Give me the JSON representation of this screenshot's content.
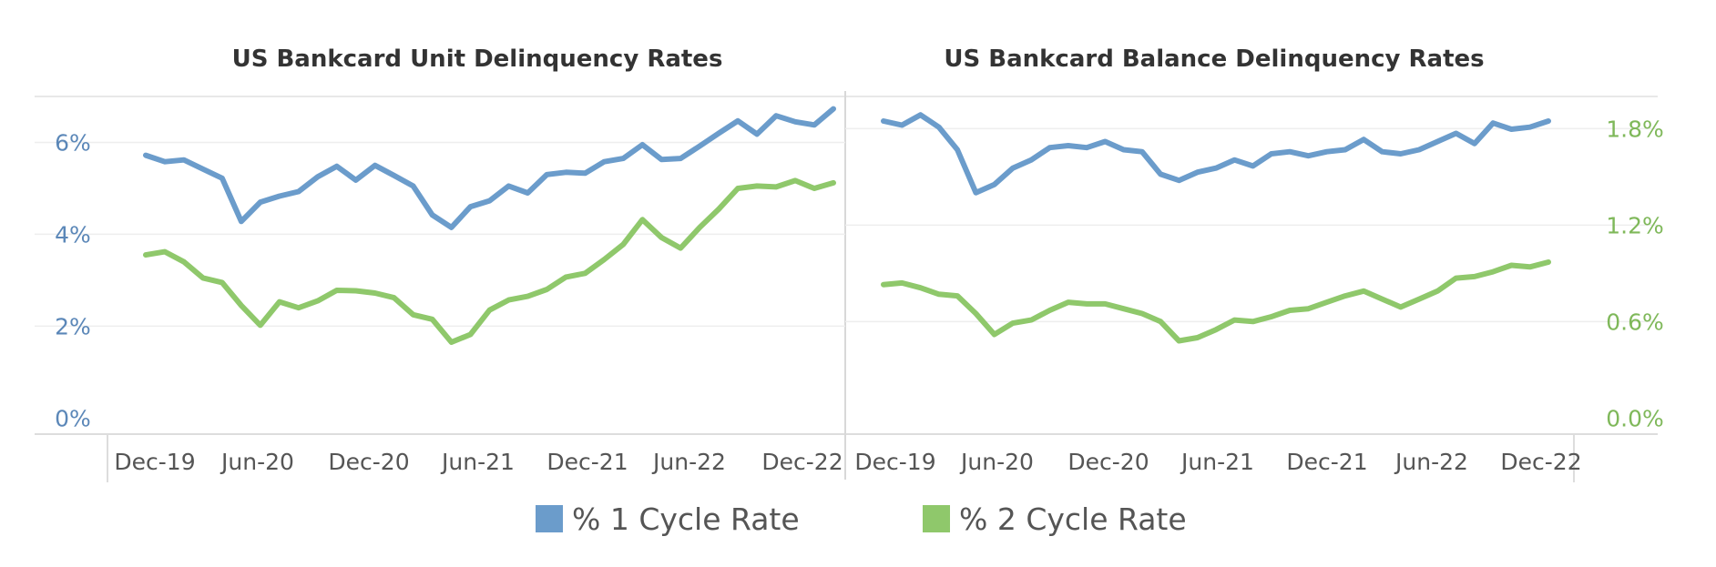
{
  "chart_data": [
    {
      "type": "line",
      "title": "US Bankcard Unit Delinquency Rates",
      "x_tick_labels": [
        "Dec-19",
        "Jun-20",
        "Dec-20",
        "Jun-21",
        "Dec-21",
        "Jun-22",
        "Dec-22"
      ],
      "y_tick_labels": [
        "6%",
        "4%",
        "2%",
        "0%"
      ],
      "y_ticks": [
        6,
        4,
        2,
        0
      ],
      "ylim": [
        -0.35,
        7.0
      ],
      "series": [
        {
          "name": "% 1 Cycle Rate",
          "color": "#6b9ccb",
          "values": [
            5.72,
            5.58,
            5.62,
            5.42,
            5.22,
            4.28,
            4.7,
            4.83,
            4.93,
            5.25,
            5.48,
            5.18,
            5.5,
            5.28,
            5.05,
            4.42,
            4.15,
            4.6,
            4.73,
            5.05,
            4.9,
            5.3,
            5.35,
            5.33,
            5.58,
            5.65,
            5.95,
            5.63,
            5.65,
            5.92,
            6.2,
            6.47,
            6.18,
            6.58,
            6.45,
            6.38,
            6.73
          ]
        },
        {
          "name": "% 2 Cycle Rate",
          "color": "#8fc86b",
          "values": [
            3.55,
            3.62,
            3.4,
            3.05,
            2.95,
            2.45,
            2.02,
            2.53,
            2.4,
            2.55,
            2.78,
            2.77,
            2.72,
            2.62,
            2.25,
            2.15,
            1.65,
            1.82,
            2.35,
            2.57,
            2.65,
            2.8,
            3.07,
            3.15,
            3.45,
            3.78,
            4.32,
            3.93,
            3.7,
            4.15,
            4.55,
            5.0,
            5.05,
            5.03,
            5.17,
            5.0,
            5.12
          ]
        }
      ]
    },
    {
      "type": "line",
      "title": "US Bankcard Balance Delinquency Rates",
      "x_tick_labels": [
        "Dec-19",
        "Jun-20",
        "Dec-20",
        "Jun-21",
        "Dec-21",
        "Jun-22",
        "Dec-22"
      ],
      "y_tick_labels": [
        "1.8%",
        "1.2%",
        "0.6%",
        "0.0%"
      ],
      "y_ticks": [
        1.8,
        1.2,
        0.6,
        0.0
      ],
      "ylim": [
        -0.1,
        2.0
      ],
      "series": [
        {
          "name": "% 1 Cycle Rate",
          "axis": "unlabeled",
          "color": "#6b9ccb",
          "values": [
            1.83,
            1.81,
            1.86,
            1.8,
            1.69,
            1.48,
            1.52,
            1.6,
            1.64,
            1.7,
            1.71,
            1.7,
            1.73,
            1.69,
            1.68,
            1.57,
            1.54,
            1.58,
            1.6,
            1.64,
            1.61,
            1.67,
            1.68,
            1.66,
            1.68,
            1.69,
            1.74,
            1.68,
            1.67,
            1.69,
            1.73,
            1.77,
            1.72,
            1.82,
            1.79,
            1.8,
            1.83
          ]
        },
        {
          "name": "% 2 Cycle Rate",
          "axis": "right",
          "color": "#8fc86b",
          "values": [
            0.83,
            0.84,
            0.81,
            0.77,
            0.76,
            0.65,
            0.52,
            0.59,
            0.61,
            0.67,
            0.72,
            0.71,
            0.71,
            0.68,
            0.65,
            0.6,
            0.48,
            0.5,
            0.55,
            0.61,
            0.6,
            0.63,
            0.67,
            0.68,
            0.72,
            0.76,
            0.79,
            0.74,
            0.69,
            0.74,
            0.79,
            0.87,
            0.88,
            0.91,
            0.95,
            0.94,
            0.97
          ]
        }
      ]
    }
  ],
  "legend": {
    "items": [
      {
        "label": "% 1 Cycle Rate",
        "color": "#6b9ccb"
      },
      {
        "label": "% 2 Cycle Rate",
        "color": "#8fc86b"
      }
    ]
  },
  "colors": {
    "left_axis_text": "#5b87b8",
    "right_axis_text": "#7fb85a",
    "grid": "#eeeeee"
  }
}
